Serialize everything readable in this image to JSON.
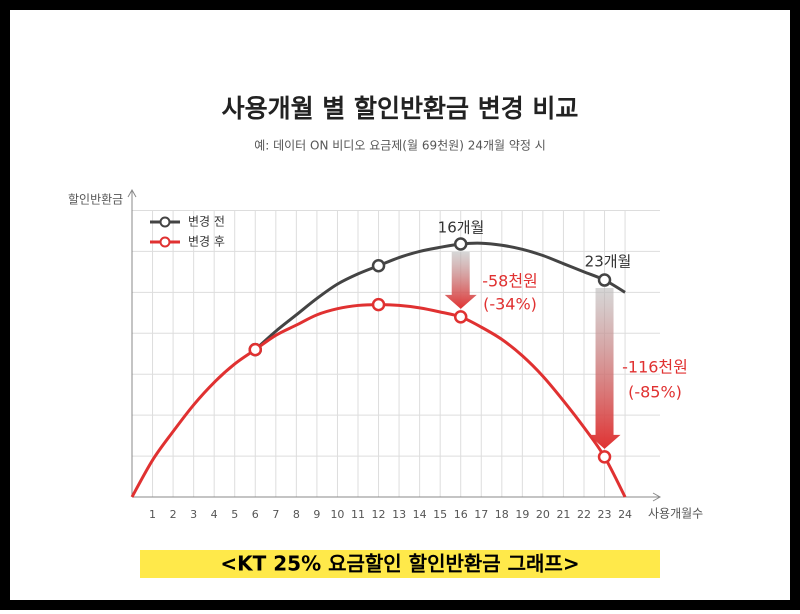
{
  "chart_data": {
    "type": "line",
    "title": "사용개월 별 할인반환금 변경 비교",
    "subtitle": "예: 데이터 ON 비디오 요금제(월 69천원) 24개월 약정 시",
    "y_label": "할인반환금",
    "x_label": "사용개월수",
    "x": [
      0,
      1,
      2,
      3,
      4,
      5,
      6,
      7,
      8,
      9,
      10,
      11,
      12,
      13,
      14,
      15,
      16,
      17,
      18,
      19,
      20,
      21,
      22,
      23,
      24
    ],
    "xlim": [
      0,
      25.7
    ],
    "xticks": [
      1,
      2,
      3,
      4,
      5,
      6,
      7,
      8,
      9,
      10,
      11,
      12,
      13,
      14,
      15,
      16,
      17,
      18,
      19,
      20,
      21,
      22,
      23,
      24
    ],
    "ylim": [
      0,
      7.5
    ],
    "yticks": [
      1,
      2,
      3,
      4,
      5,
      6,
      7
    ],
    "grid": true,
    "legend": "top-left",
    "series": [
      {
        "name": "변경 전",
        "color": "#444444",
        "values": [
          null,
          null,
          null,
          null,
          null,
          null,
          3.6,
          4.05,
          4.45,
          4.85,
          5.2,
          5.45,
          5.65,
          5.85,
          6.0,
          6.1,
          6.18,
          6.2,
          6.15,
          6.05,
          5.9,
          5.7,
          5.5,
          5.3,
          5.0
        ]
      },
      {
        "name": "변경 후",
        "color": "#e03131",
        "values": [
          0,
          0.9,
          1.6,
          2.25,
          2.8,
          3.25,
          3.6,
          3.95,
          4.2,
          4.45,
          4.6,
          4.68,
          4.7,
          4.68,
          4.62,
          4.52,
          4.4,
          4.15,
          3.85,
          3.45,
          2.95,
          2.35,
          1.7,
          0.98,
          0
        ]
      }
    ],
    "annotations": [
      "16개월",
      "23개월",
      "-58천원",
      "(-34%)",
      "-116천원",
      "(-85%)"
    ],
    "caption": "<KT 25% 요금할인 할인반환금 그래프>"
  }
}
